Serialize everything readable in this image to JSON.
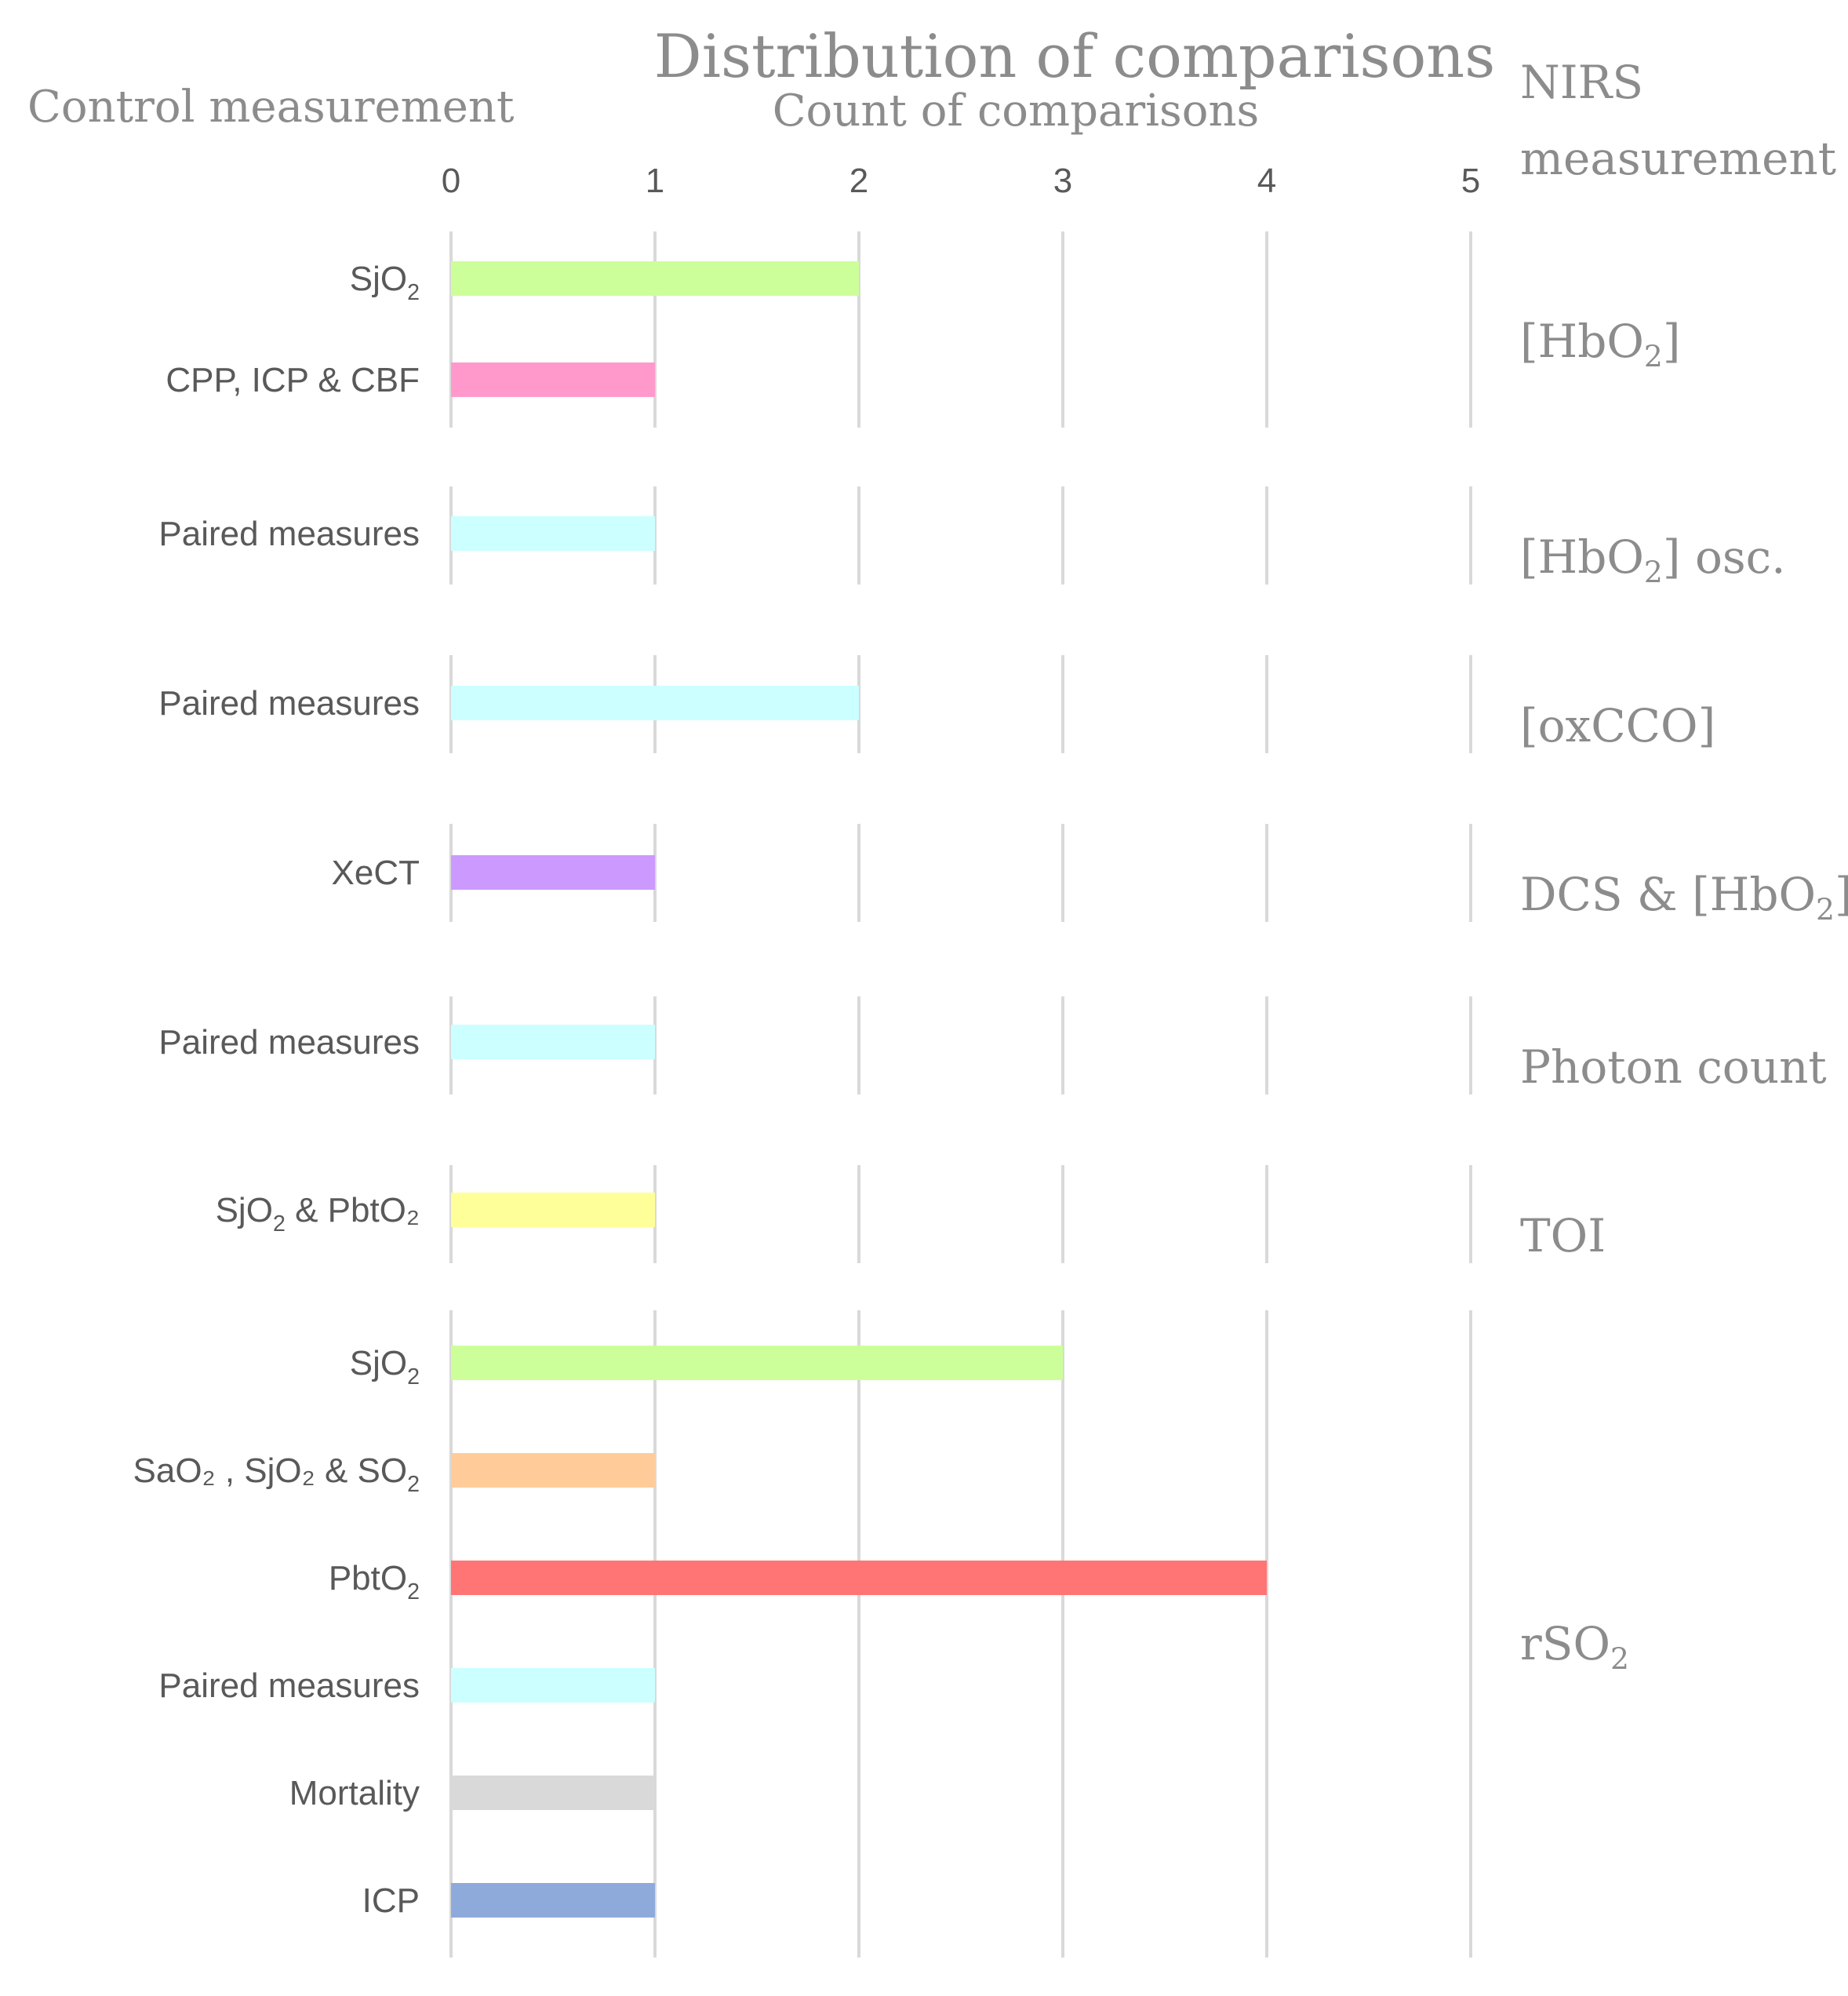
{
  "chart_data": {
    "type": "bar",
    "orientation": "horizontal",
    "title": "Distribution of comparisons",
    "xlabel": "Count of comparisons",
    "left_header": "Control measurement",
    "right_header": [
      "NIRS",
      "measurement"
    ],
    "xlim": [
      0,
      5
    ],
    "xticks": [
      "0",
      "1",
      "2",
      "3",
      "4",
      "5"
    ],
    "grid": true,
    "groups": [
      {
        "name_main": "[HbO",
        "name_sub": "2",
        "name_tail": "]",
        "bars": [
          {
            "label": "SjO",
            "label_sub": "2",
            "label_tail": "",
            "value": 2,
            "color": "#ccff99"
          },
          {
            "label": "CPP, ICP & CBF",
            "label_sub": "",
            "label_tail": "",
            "value": 1,
            "color": "#ff99cc"
          }
        ]
      },
      {
        "name_main": "[HbO",
        "name_sub": "2",
        "name_tail": "] osc.",
        "bars": [
          {
            "label": "Paired measures",
            "label_sub": "",
            "label_tail": "",
            "value": 1,
            "color": "#ccffff"
          }
        ]
      },
      {
        "name_main": "[oxCCO]",
        "name_sub": "",
        "name_tail": "",
        "bars": [
          {
            "label": "Paired measures",
            "label_sub": "",
            "label_tail": "",
            "value": 2,
            "color": "#ccffff"
          }
        ]
      },
      {
        "name_main": "DCS & [HbO",
        "name_sub": "2",
        "name_tail": "]",
        "bars": [
          {
            "label": "XeCT",
            "label_sub": "",
            "label_tail": "",
            "value": 1,
            "color": "#cc99ff"
          }
        ]
      },
      {
        "name_main": "Photon count",
        "name_sub": "",
        "name_tail": "",
        "bars": [
          {
            "label": "Paired measures",
            "label_sub": "",
            "label_tail": "",
            "value": 1,
            "color": "#ccffff"
          }
        ]
      },
      {
        "name_main": "TOI",
        "name_sub": "",
        "name_tail": "",
        "bars": [
          {
            "label": "SjO",
            "label_sub": "2",
            "label_tail": " & PbtO₂",
            "value": 1,
            "color": "#ffff99"
          }
        ]
      },
      {
        "name_main": "rSO",
        "name_sub": "2",
        "name_tail": "",
        "bars": [
          {
            "label": "SjO",
            "label_sub": "2",
            "label_tail": "",
            "value": 3,
            "color": "#ccff99"
          },
          {
            "label": "SaO₂ , SjO₂ & SO",
            "label_sub": "2",
            "label_tail": "",
            "value": 1,
            "color": "#ffcc99"
          },
          {
            "label": "PbtO",
            "label_sub": "2",
            "label_tail": "",
            "value": 4,
            "color": "#ff7575"
          },
          {
            "label": "Paired measures",
            "label_sub": "",
            "label_tail": "",
            "value": 1,
            "color": "#ccffff"
          },
          {
            "label": "Mortality",
            "label_sub": "",
            "label_tail": "",
            "value": 1,
            "color": "#d9d9d9"
          },
          {
            "label": "ICP",
            "label_sub": "",
            "label_tail": "",
            "value": 1,
            "color": "#8eaadb"
          }
        ]
      }
    ]
  }
}
